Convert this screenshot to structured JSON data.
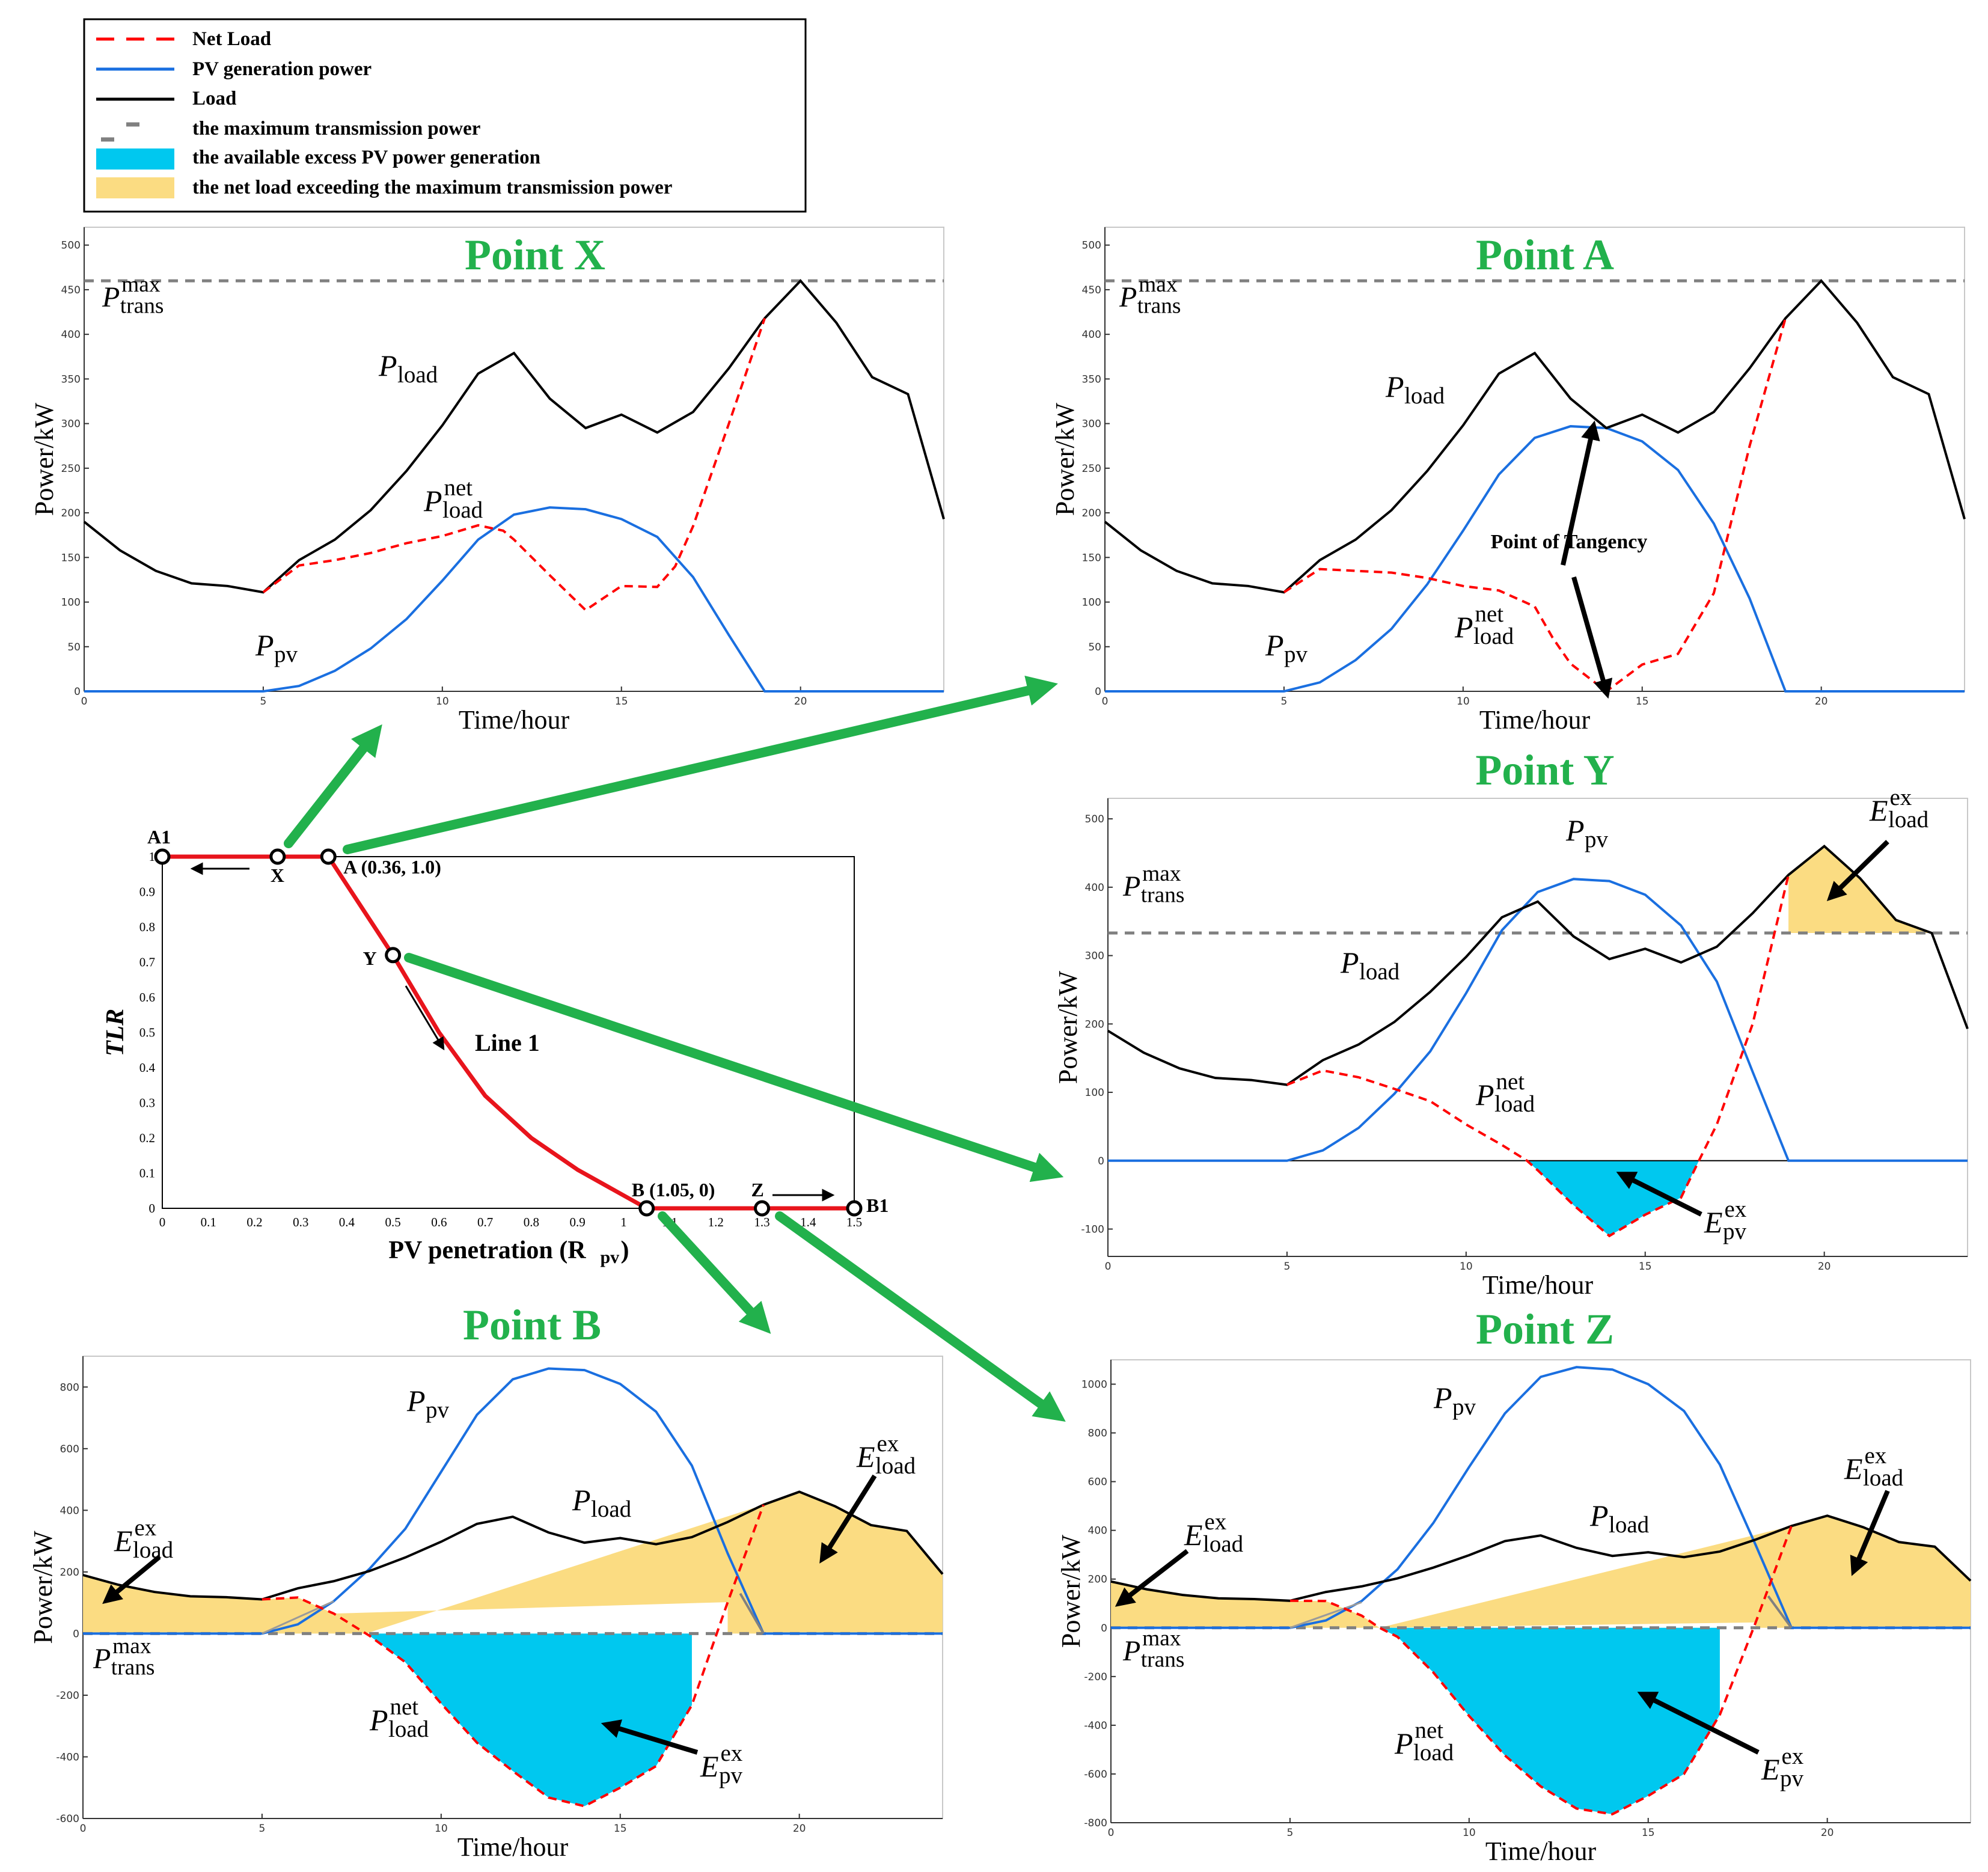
{
  "colors": {
    "net_load": "#ff0000",
    "pv": "#1a6fe0",
    "load": "#000000",
    "trans": "#808080",
    "excess_pv": "#00c8ef",
    "exceed_load": "#fbdc82",
    "title": "#22b14c",
    "arrow": "#22b14c",
    "tlr_line": "#e8141c"
  },
  "legend": {
    "items": [
      {
        "label": "Net Load",
        "kind": "dash-red"
      },
      {
        "label": "PV generation power",
        "kind": "line-blue"
      },
      {
        "label": "Load",
        "kind": "line-black"
      },
      {
        "label": "the maximum transmission power",
        "kind": "dash-gray"
      },
      {
        "label": "the available excess PV power generation",
        "kind": "fill-cyan"
      },
      {
        "label": "the net load exceeding the maximum transmission power",
        "kind": "fill-yellow"
      }
    ]
  },
  "middle_chart": {
    "ylabel": "TLR",
    "xlabel": "PV penetration (R",
    "xlabel_sub": "pv",
    "xlabel_end": ")",
    "x_ticks": [
      "0",
      "0.1",
      "0.2",
      "0.3",
      "0.4",
      "0.5",
      "0.6",
      "0.7",
      "0.8",
      "0.9",
      "1",
      "1.1",
      "1.2",
      "1.3",
      "1.4",
      "1.5"
    ],
    "y_ticks": [
      "0",
      "0.1",
      "0.2",
      "0.3",
      "0.4",
      "0.5",
      "0.6",
      "0.7",
      "0.8",
      "0.9",
      "1"
    ],
    "line_label": "Line 1",
    "points": [
      {
        "id": "A1",
        "label": "A1",
        "x": 0,
        "y": 1
      },
      {
        "id": "X",
        "label": "X",
        "x": 0.25,
        "y": 1
      },
      {
        "id": "A",
        "label": "A (0.36, 1.0)",
        "x": 0.36,
        "y": 1
      },
      {
        "id": "Y",
        "label": "Y",
        "x": 0.5,
        "y": 0.72
      },
      {
        "id": "B",
        "label": "B (1.05, 0)",
        "x": 1.05,
        "y": 0
      },
      {
        "id": "Z",
        "label": "Z",
        "x": 1.3,
        "y": 0
      },
      {
        "id": "B1",
        "label": "B1",
        "x": 1.5,
        "y": 0
      }
    ],
    "curve": [
      [
        0,
        1
      ],
      [
        0.36,
        1
      ],
      [
        0.5,
        0.72
      ],
      [
        0.6,
        0.5
      ],
      [
        0.7,
        0.32
      ],
      [
        0.8,
        0.2
      ],
      [
        0.9,
        0.11
      ],
      [
        1.05,
        0
      ],
      [
        1.5,
        0
      ]
    ]
  },
  "chart_data": [
    {
      "id": "X",
      "type": "line",
      "title": "Point X",
      "xlabel": "Time/hour",
      "ylabel": "Power/kW",
      "xlim": [
        0,
        24
      ],
      "ylim": [
        0,
        520
      ],
      "x_ticks": [
        "0",
        "5",
        "10",
        "15",
        "20"
      ],
      "y_ticks": [
        "0",
        "50",
        "100",
        "150",
        "200",
        "250",
        "300",
        "350",
        "400",
        "450",
        "500"
      ],
      "trans_max": 460,
      "load": [
        190,
        158,
        135,
        121,
        118,
        111,
        147,
        170,
        203,
        247,
        298,
        356,
        379,
        328,
        295,
        310,
        290,
        313,
        362,
        418,
        460,
        413,
        352,
        333,
        193
      ],
      "pv": [
        0,
        0,
        0,
        0,
        0,
        0,
        6,
        23,
        48,
        81,
        124,
        170,
        198,
        206,
        204,
        193,
        173,
        128,
        63,
        0,
        0,
        0,
        0,
        0,
        0
      ],
      "net_load": {
        "x": [
          5,
          6,
          7,
          8,
          9,
          10,
          11,
          11.7,
          12,
          13,
          14,
          15,
          16,
          16.5,
          17,
          18,
          19
        ],
        "y": [
          111,
          141,
          147,
          155,
          166,
          174,
          186,
          180,
          170,
          130,
          91,
          118,
          117,
          140,
          185,
          300,
          418
        ]
      },
      "labels": [
        {
          "text": "P",
          "sub": "load",
          "role": "load"
        },
        {
          "text": "P",
          "sub": "pv",
          "role": "pv"
        },
        {
          "text": "P",
          "sub": "load",
          "sup": "net",
          "role": "net"
        },
        {
          "text": "P",
          "sub": "trans",
          "sup": "max",
          "role": "trans"
        }
      ]
    },
    {
      "id": "A",
      "type": "line",
      "title": "Point A",
      "xlabel": "Time/hour",
      "ylabel": "Power/kW",
      "xlim": [
        0,
        24
      ],
      "ylim": [
        0,
        520
      ],
      "x_ticks": [
        "0",
        "5",
        "10",
        "15",
        "20"
      ],
      "y_ticks": [
        "0",
        "50",
        "100",
        "150",
        "200",
        "250",
        "300",
        "350",
        "400",
        "450",
        "500"
      ],
      "trans_max": 460,
      "annotation": "Point of Tangency",
      "load": [
        190,
        158,
        135,
        121,
        118,
        111,
        147,
        170,
        203,
        247,
        298,
        356,
        379,
        328,
        295,
        310,
        290,
        313,
        362,
        418,
        460,
        413,
        352,
        333,
        193
      ],
      "pv": [
        0,
        0,
        0,
        0,
        0,
        0,
        10,
        35,
        70,
        120,
        180,
        243,
        284,
        297,
        295,
        280,
        248,
        188,
        104,
        0,
        0,
        0,
        0,
        0,
        0
      ],
      "net_load": {
        "x": [
          5,
          6,
          7,
          8,
          9,
          10,
          11,
          12,
          12.5,
          13,
          14,
          14.5,
          15,
          16,
          17,
          18,
          19
        ],
        "y": [
          111,
          137,
          135,
          133,
          127,
          118,
          113,
          95,
          60,
          31,
          0,
          15,
          30,
          42,
          110,
          275,
          418
        ]
      },
      "labels": [
        {
          "text": "P",
          "sub": "load",
          "role": "load"
        },
        {
          "text": "P",
          "sub": "pv",
          "role": "pv"
        },
        {
          "text": "P",
          "sub": "load",
          "sup": "net",
          "role": "net"
        },
        {
          "text": "P",
          "sub": "trans",
          "sup": "max",
          "role": "trans"
        }
      ]
    },
    {
      "id": "Y",
      "type": "line",
      "title": "Point Y",
      "xlabel": "Time/hour",
      "ylabel": "Power/kW",
      "xlim": [
        0,
        24
      ],
      "ylim": [
        -140,
        530
      ],
      "x_ticks": [
        "0",
        "5",
        "10",
        "15",
        "20"
      ],
      "y_ticks": [
        "-100",
        "0",
        "100",
        "200",
        "300",
        "400",
        "500"
      ],
      "trans_max": 333,
      "load": [
        190,
        158,
        135,
        121,
        118,
        111,
        147,
        170,
        203,
        247,
        298,
        356,
        379,
        328,
        295,
        310,
        290,
        313,
        362,
        418,
        460,
        413,
        352,
        333,
        193
      ],
      "pv": [
        0,
        0,
        0,
        0,
        0,
        0,
        15,
        48,
        98,
        160,
        245,
        337,
        393,
        412,
        409,
        389,
        344,
        262,
        130,
        0,
        0,
        0,
        0,
        0,
        0
      ],
      "net_load": {
        "x": [
          5,
          6,
          7,
          8,
          9,
          10,
          11,
          11.7,
          12,
          13,
          14,
          15,
          16,
          16.5,
          17,
          18,
          19
        ],
        "y": [
          111,
          132,
          122,
          105,
          87,
          53,
          23,
          0,
          -14,
          -65,
          -110,
          -79,
          -54,
          0,
          53,
          200,
          418
        ]
      },
      "labels": [
        {
          "text": "P",
          "sub": "load",
          "role": "load"
        },
        {
          "text": "P",
          "sub": "pv",
          "role": "pv"
        },
        {
          "text": "P",
          "sub": "load",
          "sup": "net",
          "role": "net"
        },
        {
          "text": "P",
          "sub": "trans",
          "sup": "max",
          "role": "trans"
        },
        {
          "text": "E",
          "sub": "pv",
          "sup": "ex",
          "role": "epv"
        },
        {
          "text": "E",
          "sub": "load",
          "sup": "ex",
          "role": "eload"
        }
      ]
    },
    {
      "id": "B",
      "type": "line",
      "title": "Point B",
      "xlabel": "Time/hour",
      "ylabel": "Power/kW",
      "xlim": [
        0,
        24
      ],
      "ylim": [
        -600,
        900
      ],
      "x_ticks": [
        "0",
        "5",
        "10",
        "15",
        "20"
      ],
      "y_ticks": [
        "-600",
        "-400",
        "-200",
        "0",
        "200",
        "400",
        "600",
        "800"
      ],
      "trans_max": 0,
      "load": [
        190,
        158,
        135,
        121,
        118,
        111,
        147,
        170,
        203,
        247,
        298,
        356,
        379,
        328,
        295,
        310,
        290,
        313,
        362,
        418,
        460,
        413,
        352,
        333,
        193
      ],
      "pv": [
        0,
        0,
        0,
        0,
        0,
        0,
        30,
        105,
        210,
        340,
        525,
        710,
        825,
        860,
        855,
        810,
        720,
        545,
        260,
        0,
        0,
        0,
        0,
        0,
        0
      ],
      "net_load": {
        "x": [
          5,
          6,
          7,
          8,
          9,
          10,
          11,
          12,
          13,
          14,
          15,
          16,
          17,
          18,
          19
        ],
        "y": [
          111,
          117,
          65,
          -7,
          -93,
          -227,
          -354,
          -446,
          -532,
          -560,
          -500,
          -430,
          -232,
          102,
          418
        ]
      },
      "labels": [
        {
          "text": "P",
          "sub": "load",
          "role": "load"
        },
        {
          "text": "P",
          "sub": "pv",
          "role": "pv"
        },
        {
          "text": "P",
          "sub": "load",
          "sup": "net",
          "role": "net"
        },
        {
          "text": "P",
          "sub": "trans",
          "sup": "max",
          "role": "trans"
        },
        {
          "text": "E",
          "sub": "pv",
          "sup": "ex",
          "role": "epv"
        },
        {
          "text": "E",
          "sub": "load",
          "sup": "ex",
          "role": "eload"
        },
        {
          "text": "E",
          "sub": "load",
          "sup": "ex",
          "role": "eload2"
        }
      ]
    },
    {
      "id": "Z",
      "type": "line",
      "title": "Point Z",
      "xlabel": "Time/hour",
      "ylabel": "Power/kW",
      "xlim": [
        0,
        24
      ],
      "ylim": [
        -800,
        1100
      ],
      "x_ticks": [
        "0",
        "5",
        "10",
        "15",
        "20"
      ],
      "y_ticks": [
        "-800",
        "-600",
        "-400",
        "-200",
        "0",
        "200",
        "400",
        "600",
        "800",
        "1000"
      ],
      "trans_max": 0,
      "load": [
        190,
        158,
        135,
        121,
        118,
        111,
        147,
        170,
        203,
        247,
        298,
        356,
        379,
        328,
        295,
        310,
        290,
        313,
        362,
        418,
        460,
        413,
        352,
        333,
        193
      ],
      "pv": [
        0,
        0,
        0,
        0,
        0,
        0,
        30,
        110,
        240,
        430,
        660,
        880,
        1030,
        1070,
        1060,
        1000,
        890,
        670,
        340,
        0,
        0,
        0,
        0,
        0,
        0
      ],
      "net_load": {
        "x": [
          5,
          6,
          7,
          7.5,
          8,
          9,
          10,
          11,
          12,
          13,
          14,
          15,
          16,
          17,
          18,
          19
        ],
        "y": [
          111,
          110,
          50,
          0,
          -37,
          -183,
          -362,
          -524,
          -651,
          -742,
          -765,
          -690,
          -600,
          -357,
          22,
          418
        ]
      },
      "labels": [
        {
          "text": "P",
          "sub": "load",
          "role": "load"
        },
        {
          "text": "P",
          "sub": "pv",
          "role": "pv"
        },
        {
          "text": "P",
          "sub": "load",
          "sup": "net",
          "role": "net"
        },
        {
          "text": "P",
          "sub": "trans",
          "sup": "max",
          "role": "trans"
        },
        {
          "text": "E",
          "sub": "pv",
          "sup": "ex",
          "role": "epv"
        },
        {
          "text": "E",
          "sub": "load",
          "sup": "ex",
          "role": "eload"
        },
        {
          "text": "E",
          "sub": "load",
          "sup": "ex",
          "role": "eload2"
        }
      ]
    }
  ]
}
